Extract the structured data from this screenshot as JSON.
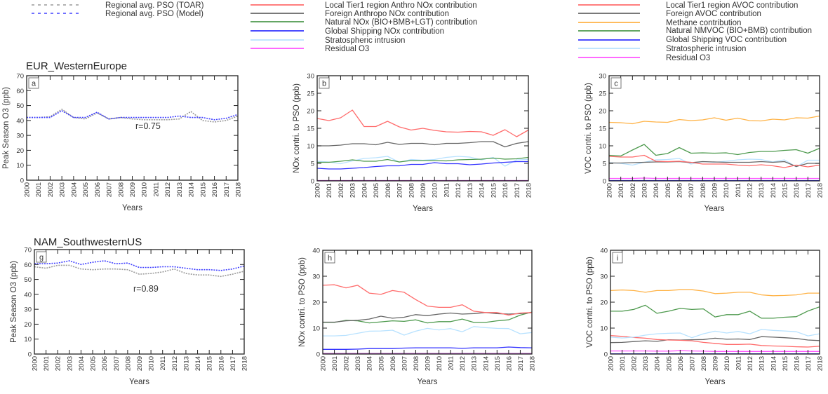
{
  "legend_pso": [
    {
      "label": "Regional avg. PSO (TOAR)",
      "color": "#9a9a9a",
      "style": "dashed"
    },
    {
      "label": "Regional avg. PSO (Model)",
      "color": "#4040ff",
      "style": "dashed"
    }
  ],
  "legend_nox": [
    {
      "label": "Local Tier1 region Anthro NOx contribution",
      "color": "#ff6b6b"
    },
    {
      "label": "Foreign Anthropo NOx contribution",
      "color": "#666666"
    },
    {
      "label": "Natural NOx (BIO+BMB+LGT) contribution",
      "color": "#4e9a4e"
    },
    {
      "label": "Global Shipping NOx contribution",
      "color": "#3333ff"
    },
    {
      "label": "Stratospheric intrusion",
      "color": "#b8e2ff"
    },
    {
      "label": "Residual O3",
      "color": "#ff55ff"
    }
  ],
  "legend_voc": [
    {
      "label": "Local Tier1 region AVOC contribution",
      "color": "#ff6b6b"
    },
    {
      "label": "Foreign AVOC contribution",
      "color": "#666666"
    },
    {
      "label": "Methane contribution",
      "color": "#ffb347"
    },
    {
      "label": "Natural NMVOC (BIO+BMB) contribution",
      "color": "#4e9a4e"
    },
    {
      "label": "Global Shipping VOC contribution",
      "color": "#3333ff"
    },
    {
      "label": "Stratospheric intrusion",
      "color": "#b8e2ff"
    },
    {
      "label": "Residual O3",
      "color": "#ff55ff"
    }
  ],
  "chart_data": [
    {
      "type": "line",
      "panel": "a",
      "title": "EUR_WesternEurope",
      "ylabel": "Peak Season O3 (ppb)",
      "xlabel": "Years",
      "annotation": "r=0.75",
      "x": [
        2000,
        2001,
        2002,
        2003,
        2004,
        2005,
        2006,
        2007,
        2008,
        2009,
        2010,
        2011,
        2012,
        2013,
        2014,
        2015,
        2016,
        2017,
        2018
      ],
      "xlim": [
        2000,
        2018
      ],
      "ylim": [
        0,
        70
      ],
      "yticks": [
        0,
        10,
        20,
        30,
        40,
        50,
        60,
        70
      ],
      "series": [
        {
          "legend": "Regional avg. PSO (TOAR)",
          "color": "#9a9a9a",
          "dashed": true,
          "values": [
            42,
            42,
            42.5,
            47.5,
            42,
            41,
            45,
            41,
            42,
            41,
            40.5,
            40.5,
            40.5,
            41,
            46,
            40,
            39,
            40,
            43
          ]
        },
        {
          "legend": "Regional avg. PSO (Model)",
          "color": "#4040ff",
          "dashed": true,
          "values": [
            42,
            42,
            42,
            46.5,
            42,
            42,
            45.5,
            41,
            42,
            42,
            42,
            42,
            42,
            43,
            42,
            42,
            40.5,
            41.5,
            44
          ]
        }
      ]
    },
    {
      "type": "line",
      "panel": "b",
      "title": "",
      "ylabel": "NOx contri. to PSO (ppb)",
      "xlabel": "Years",
      "annotation": "",
      "x": [
        2000,
        2001,
        2002,
        2003,
        2004,
        2005,
        2006,
        2007,
        2008,
        2009,
        2010,
        2011,
        2012,
        2013,
        2014,
        2015,
        2016,
        2017,
        2018
      ],
      "xlim": [
        2000,
        2018
      ],
      "ylim": [
        0,
        30
      ],
      "yticks": [
        0,
        5,
        10,
        15,
        20,
        25,
        30
      ],
      "series": [
        {
          "legend": "Residual O3",
          "color": "#b040c0",
          "values": [
            0.1,
            0.1,
            0.1,
            0.1,
            0.1,
            0.1,
            0.1,
            0.1,
            0.1,
            0.1,
            0.1,
            0.1,
            0.1,
            0.1,
            0.1,
            0.1,
            0.1,
            0.1,
            0.1
          ]
        },
        {
          "legend": "Stratospheric intrusion",
          "color": "#b8e2ff",
          "values": [
            5.6,
            5.4,
            4.9,
            5.7,
            6.4,
            6.6,
            7,
            5.3,
            6.1,
            5.9,
            6.1,
            6.7,
            7,
            6.8,
            6,
            6.7,
            4.2,
            6,
            6.1
          ]
        },
        {
          "legend": "Global Shipping NOx contribution",
          "color": "#3333ff",
          "values": [
            3.6,
            3.4,
            3.4,
            3.6,
            3.8,
            4.1,
            4.3,
            4.3,
            4.7,
            4.7,
            5.2,
            4.9,
            4.9,
            4.6,
            4.8,
            5.1,
            5.3,
            5.5,
            5.5
          ]
        },
        {
          "legend": "Natural NOx (BIO+BMB+LGT) contribution",
          "color": "#4e9a4e",
          "values": [
            5.3,
            5.3,
            5.6,
            6,
            5.6,
            5.6,
            6.1,
            5.4,
            5.8,
            5.8,
            5.8,
            5.7,
            6,
            6.1,
            6.2,
            6.5,
            6.2,
            6.3,
            6.7
          ]
        },
        {
          "legend": "Foreign Anthropo NOx contribution",
          "color": "#666666",
          "values": [
            10,
            10,
            10.2,
            10.6,
            10.6,
            10.3,
            11,
            10.4,
            10.7,
            10.7,
            10.3,
            10.7,
            10.7,
            10.9,
            11.2,
            11.2,
            9.7,
            10.7,
            11.2
          ]
        },
        {
          "legend": "Local Tier1 region Anthro NOx contribution",
          "color": "#ff6b6b",
          "values": [
            17.8,
            17.2,
            18,
            20.2,
            15.5,
            15.5,
            17,
            15.4,
            14.5,
            15,
            14.4,
            14,
            13.9,
            14.1,
            14,
            13,
            14.6,
            12.6,
            14.5
          ]
        }
      ]
    },
    {
      "type": "line",
      "panel": "c",
      "title": "",
      "ylabel": "VOC contri. to PSO (ppb)",
      "xlabel": "Years",
      "annotation": "",
      "x": [
        2000,
        2001,
        2002,
        2003,
        2004,
        2005,
        2006,
        2007,
        2008,
        2009,
        2010,
        2011,
        2012,
        2013,
        2014,
        2015,
        2016,
        2017,
        2018
      ],
      "xlim": [
        2000,
        2018
      ],
      "ylim": [
        0,
        30
      ],
      "yticks": [
        0,
        5,
        10,
        15,
        20,
        25,
        30
      ],
      "series": [
        {
          "legend": "Global Shipping VOC contribution",
          "color": "#3333ff",
          "values": [
            0.1,
            0.1,
            0.1,
            0.1,
            0.1,
            0.1,
            0.1,
            0.1,
            0.1,
            0.1,
            0.1,
            0.1,
            0.1,
            0.1,
            0.1,
            0.1,
            0.1,
            0.1,
            0.1
          ]
        },
        {
          "legend": "Residual O3",
          "color": "#ff55ff",
          "values": [
            0.7,
            0.7,
            0.7,
            0.8,
            0.7,
            0.7,
            0.7,
            0.7,
            0.7,
            0.7,
            0.7,
            0.7,
            0.7,
            0.7,
            0.7,
            0.7,
            0.7,
            0.7,
            0.7
          ]
        },
        {
          "legend": "Stratospheric intrusion",
          "color": "#b8e2ff",
          "values": [
            5.2,
            5,
            4.5,
            5.3,
            6,
            6.1,
            6.4,
            4.8,
            5.5,
            5.3,
            5.6,
            6,
            6.2,
            6.1,
            5.4,
            6,
            4,
            5.9,
            5.9
          ]
        },
        {
          "legend": "Foreign AVOC contribution",
          "color": "#666666",
          "values": [
            5.1,
            5.1,
            5.2,
            5.3,
            5.4,
            5.4,
            5.5,
            5.2,
            5.5,
            5.4,
            5.3,
            5.3,
            5.3,
            5.5,
            5.3,
            5.5,
            4.1,
            5,
            5
          ]
        },
        {
          "legend": "Local Tier1 region AVOC contribution",
          "color": "#ff6b6b",
          "values": [
            7,
            6.8,
            6.8,
            7.3,
            5.6,
            5.5,
            5.6,
            5.3,
            4.8,
            4.8,
            4.8,
            4.5,
            4.3,
            4.6,
            4.3,
            3.8,
            4.5,
            4,
            4.5
          ]
        },
        {
          "legend": "Natural NMVOC (BIO+BMB) contribution",
          "color": "#4e9a4e",
          "values": [
            7.3,
            7.1,
            8.8,
            10.4,
            7.3,
            7.8,
            9.5,
            7.9,
            8,
            7.9,
            8,
            7.5,
            8.1,
            8.4,
            8.4,
            8.7,
            8.9,
            7.9,
            9.3
          ]
        },
        {
          "legend": "Methane contribution",
          "color": "#ffb347",
          "values": [
            16.7,
            16.6,
            16.3,
            17,
            16.8,
            16.7,
            17.5,
            17.2,
            17.4,
            18,
            17.3,
            17.9,
            17.2,
            17.1,
            17.6,
            17.4,
            18,
            17.9,
            18.5
          ]
        }
      ]
    },
    {
      "type": "line",
      "panel": "g",
      "title": "NAM_SouthwesternUS",
      "ylabel": "Peak Season O3 (ppb)",
      "xlabel": "Years",
      "annotation": "r=0.89",
      "x": [
        2000,
        2001,
        2002,
        2003,
        2004,
        2005,
        2006,
        2007,
        2008,
        2009,
        2010,
        2011,
        2012,
        2013,
        2014,
        2015,
        2016,
        2017,
        2018
      ],
      "xlim": [
        2000,
        2018
      ],
      "ylim": [
        0,
        70
      ],
      "yticks": [
        0,
        10,
        20,
        30,
        40,
        50,
        60,
        70
      ],
      "series": [
        {
          "legend": "Regional avg. PSO (TOAR)",
          "color": "#9a9a9a",
          "dashed": true,
          "values": [
            58.5,
            57.5,
            59.5,
            59.5,
            57,
            56.5,
            57,
            57,
            56.5,
            53.5,
            54,
            55,
            57,
            54,
            53,
            53,
            52,
            53.5,
            55.5
          ]
        },
        {
          "legend": "Regional avg. PSO (Model)",
          "color": "#4040ff",
          "dashed": true,
          "values": [
            60.5,
            60.5,
            61,
            62.5,
            60,
            61.5,
            62.5,
            60.5,
            61,
            58,
            58,
            58.5,
            58.5,
            57.5,
            56.5,
            56.5,
            56,
            57,
            59
          ]
        }
      ]
    },
    {
      "type": "line",
      "panel": "h",
      "title": "",
      "ylabel": "NOx contri. to PSO (ppb)",
      "xlabel": "Years",
      "annotation": "",
      "x": [
        2000,
        2001,
        2002,
        2003,
        2004,
        2005,
        2006,
        2007,
        2008,
        2009,
        2010,
        2011,
        2012,
        2013,
        2014,
        2015,
        2016,
        2017,
        2018
      ],
      "xlim": [
        2000,
        2018
      ],
      "ylim": [
        0,
        40
      ],
      "yticks": [
        0,
        10,
        20,
        30,
        40
      ],
      "series": [
        {
          "legend": "Residual O3",
          "color": "#b040c0",
          "values": [
            0.2,
            0.2,
            0.2,
            0.2,
            0.2,
            0.2,
            0.2,
            0.2,
            0.2,
            0.2,
            0.2,
            0.2,
            0.2,
            0.2,
            0.2,
            0.2,
            0.2,
            0.2,
            0.2
          ]
        },
        {
          "legend": "Global Shipping NOx contribution",
          "color": "#3333ff",
          "values": [
            1.8,
            1.8,
            1.8,
            1.9,
            2.1,
            2.1,
            2.1,
            2.3,
            2.4,
            2.4,
            2.4,
            2.4,
            2.2,
            2.4,
            2.4,
            2.4,
            2.7,
            2.5,
            2.4
          ]
        },
        {
          "legend": "Stratospheric intrusion",
          "color": "#b8e2ff",
          "values": [
            7,
            7,
            7.2,
            8,
            8.8,
            8.9,
            9.2,
            7.3,
            8.8,
            9.9,
            9.3,
            9.8,
            8.6,
            10.6,
            10.2,
            9.9,
            9.8,
            7.8,
            8.3
          ]
        },
        {
          "legend": "Natural NOx (BIO+BMB+LGT) contribution",
          "color": "#4e9a4e",
          "values": [
            12.2,
            12.2,
            13,
            12.8,
            12,
            12.4,
            12.8,
            12.6,
            13.2,
            12,
            12.5,
            12.5,
            13.5,
            12.2,
            12.2,
            12.8,
            13.2,
            15,
            16.2
          ]
        },
        {
          "legend": "Foreign Anthropo NOx contribution",
          "color": "#666666",
          "values": [
            12.3,
            12.3,
            12.8,
            13,
            13.5,
            14.6,
            13.8,
            14.2,
            15.2,
            14.8,
            15.4,
            15.8,
            15.4,
            15.6,
            16,
            15.6,
            15.4,
            15.6,
            16
          ]
        },
        {
          "legend": "Local Tier1 region Anthro NOx contribution",
          "color": "#ff6b6b",
          "values": [
            26.5,
            26.7,
            25.5,
            26.5,
            23.5,
            23,
            24.5,
            23.8,
            21,
            18.5,
            18,
            18,
            19,
            16.5,
            16,
            16,
            15,
            15.8,
            16
          ]
        }
      ]
    },
    {
      "type": "line",
      "panel": "i",
      "title": "",
      "ylabel": "VOC contri. to PSO (ppb)",
      "xlabel": "Years",
      "annotation": "",
      "x": [
        2000,
        2001,
        2002,
        2003,
        2004,
        2005,
        2006,
        2007,
        2008,
        2009,
        2010,
        2011,
        2012,
        2013,
        2014,
        2015,
        2016,
        2017,
        2018
      ],
      "xlim": [
        2000,
        2018
      ],
      "ylim": [
        0,
        40
      ],
      "yticks": [
        0,
        10,
        20,
        30,
        40
      ],
      "series": [
        {
          "legend": "Global Shipping VOC contribution",
          "color": "#3333ff",
          "values": [
            0.1,
            0.1,
            0.1,
            0.1,
            0.1,
            0.1,
            0.1,
            0.1,
            0.1,
            0.1,
            0.1,
            0.1,
            0.1,
            0.1,
            0.1,
            0.1,
            0.1,
            0.1,
            0.1
          ]
        },
        {
          "legend": "Residual O3",
          "color": "#ff55ff",
          "values": [
            1.2,
            1.2,
            1.2,
            1.2,
            1.1,
            1.1,
            1.3,
            1.2,
            1.1,
            1,
            1,
            1,
            1,
            1,
            1,
            1,
            1,
            1,
            1
          ]
        },
        {
          "legend": "Foreign AVOC contribution",
          "color": "#666666",
          "values": [
            4.4,
            4.5,
            4.8,
            5.1,
            4.9,
            5.5,
            5.4,
            5.5,
            5.6,
            6.1,
            5.7,
            5.8,
            5.6,
            6.7,
            6.5,
            6.3,
            6,
            5.4,
            5.2
          ]
        },
        {
          "legend": "Local Tier1 region AVOC contribution",
          "color": "#ff6b6b",
          "values": [
            7.1,
            6.8,
            6.4,
            6.1,
            5.6,
            5.4,
            5.3,
            5.1,
            4.5,
            4.1,
            3.7,
            3.7,
            3.8,
            3.3,
            3.1,
            3,
            2.8,
            2.7,
            3
          ]
        },
        {
          "legend": "Stratospheric intrusion",
          "color": "#b8e2ff",
          "values": [
            6.5,
            6.2,
            6.5,
            7.3,
            7.8,
            8,
            8.1,
            6.3,
            7.8,
            8.8,
            8.1,
            8.7,
            7.8,
            9.5,
            9.1,
            8.9,
            8.6,
            7,
            7.8
          ]
        },
        {
          "legend": "Natural NMVOC (BIO+BMB) contribution",
          "color": "#4e9a4e",
          "values": [
            16.5,
            16.5,
            17.2,
            18.8,
            15.7,
            16.5,
            17.6,
            17.2,
            17.4,
            14.3,
            15.2,
            15.2,
            16.5,
            13.8,
            13.8,
            14.2,
            14.4,
            16.6,
            18.2
          ]
        },
        {
          "legend": "Methane contribution",
          "color": "#ffb347",
          "values": [
            24.5,
            24.7,
            24.5,
            23.8,
            24.5,
            24.5,
            24.8,
            24.8,
            24.3,
            23.3,
            23.5,
            23.8,
            23.8,
            22.8,
            22.5,
            22.6,
            22.8,
            23.5,
            23.5
          ]
        }
      ]
    }
  ]
}
